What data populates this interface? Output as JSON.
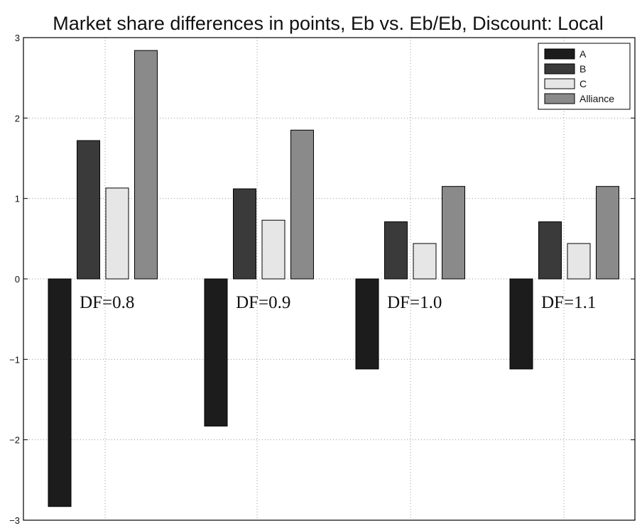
{
  "chart_data": {
    "type": "bar",
    "title": "Market share differences in points, Eb vs. Eb/Eb, Discount: Local",
    "xlabel": "",
    "ylabel": "",
    "ylim": [
      -3,
      3
    ],
    "yticks": [
      -3,
      -2,
      -1,
      0,
      1,
      2,
      3
    ],
    "yticklabels": [
      "−3",
      "−2",
      "−1",
      "0",
      "1",
      "2",
      "3"
    ],
    "grid": true,
    "legend_position": "top-right",
    "categories": [
      "DF=0.8",
      "DF=0.9",
      "DF=1.0",
      "DF=1.1"
    ],
    "series": [
      {
        "name": "A",
        "color": "#1c1c1c",
        "values": [
          -2.83,
          -1.83,
          -1.12,
          -1.12
        ]
      },
      {
        "name": "B",
        "color": "#3a3a3a",
        "values": [
          1.72,
          1.12,
          0.71,
          0.71
        ]
      },
      {
        "name": "C",
        "color": "#e6e6e6",
        "values": [
          1.13,
          0.73,
          0.44,
          0.44
        ]
      },
      {
        "name": "Alliance",
        "color": "#8a8a8a",
        "values": [
          2.84,
          1.85,
          1.15,
          1.15
        ]
      }
    ]
  }
}
